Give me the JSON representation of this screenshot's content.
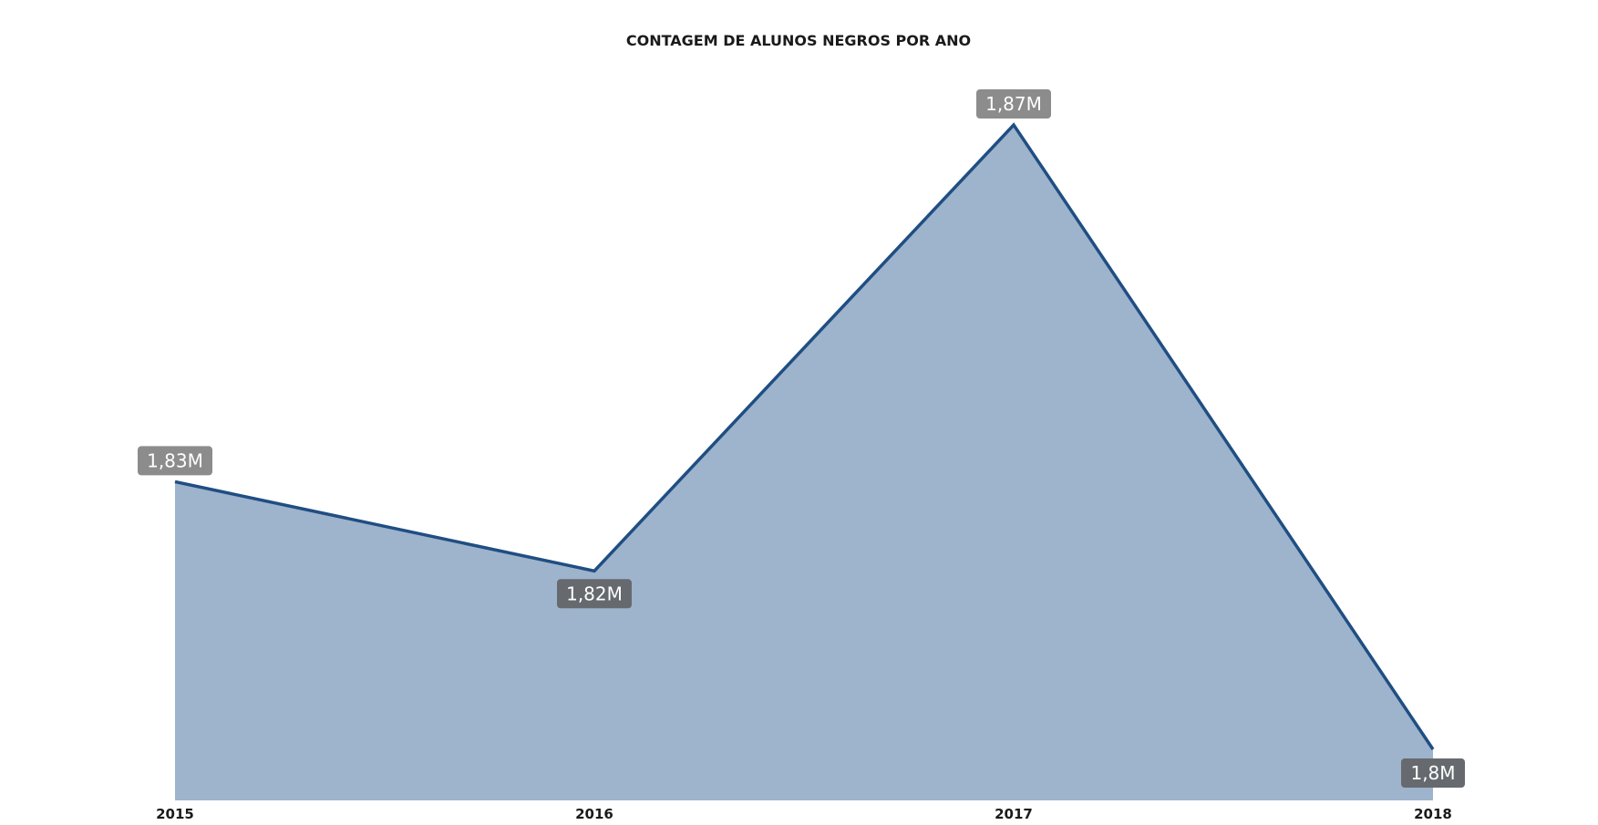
{
  "chart_data": {
    "type": "area",
    "title": "CONTAGEM DE ALUNOS NEGROS POR ANO",
    "categories": [
      "2015",
      "2016",
      "2017",
      "2018"
    ],
    "values": [
      1830000,
      1820000,
      1870000,
      1800000
    ],
    "data_labels": [
      "1,83M",
      "1,82M",
      "1,87M",
      "1,8M"
    ],
    "xlabel": "",
    "ylabel": "",
    "grid": false,
    "legend": "none",
    "colors": {
      "line": "#1f4e82",
      "fill": "#9eb3cc",
      "label_light": "#8c8c8c",
      "label_dark": "#666a6e"
    }
  }
}
